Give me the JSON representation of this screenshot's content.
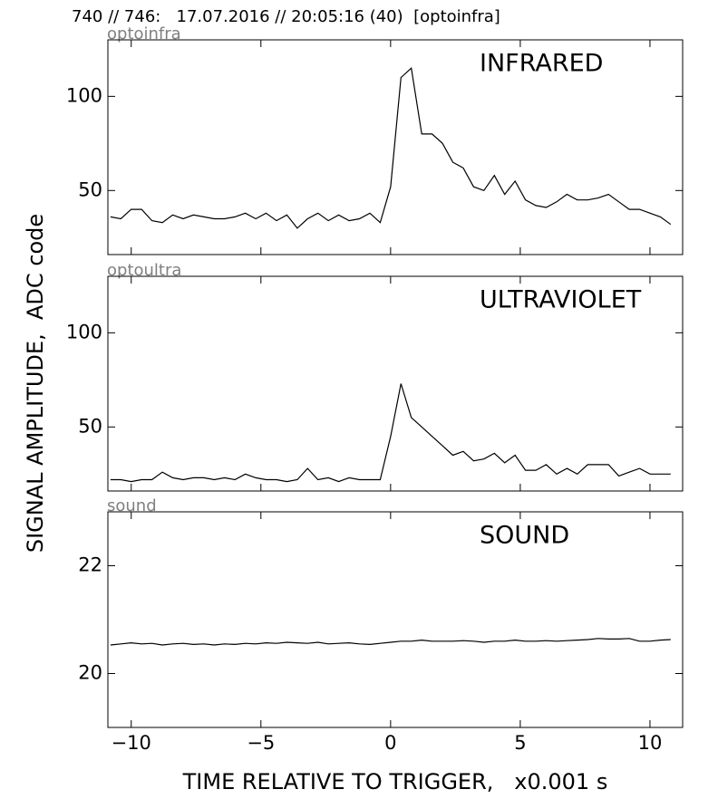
{
  "figure": {
    "title": "740 // 746:   17.07.2016 // 20:05:16 (40)  [optoinfra]",
    "xlabel": "TIME RELATIVE TO TRIGGER,   x0.001 s",
    "ylabel": "SIGNAL AMPLITUDE,  ADC code"
  },
  "chart_data": [
    {
      "type": "line",
      "subtitle": "optoinfra",
      "annotation": "INFRARED",
      "color": "#000000",
      "xlim": [
        -10.9,
        11.26
      ],
      "xticks": [
        -10,
        -5,
        0,
        5,
        10
      ],
      "show_xticklabels": false,
      "ylim": [
        16,
        130
      ],
      "yticks": [
        50,
        100
      ],
      "x": [
        -10.8,
        -10.4,
        -10,
        -9.6,
        -9.2,
        -8.8,
        -8.4,
        -8,
        -7.6,
        -7.2,
        -6.8,
        -6.4,
        -6,
        -5.6,
        -5.2,
        -4.8,
        -4.4,
        -4,
        -3.6,
        -3.2,
        -2.8,
        -2.4,
        -2,
        -1.6,
        -1.2,
        -0.8,
        -0.4,
        0,
        0.4,
        0.8,
        1.2,
        1.6,
        2,
        2.4,
        2.8,
        3.2,
        3.6,
        4,
        4.4,
        4.8,
        5.2,
        5.6,
        6,
        6.4,
        6.8,
        7.2,
        7.6,
        8,
        8.4,
        8.8,
        9.2,
        9.6,
        10,
        10.4,
        10.8
      ],
      "values": [
        36,
        35,
        40,
        40,
        34,
        33,
        37,
        35,
        37,
        36,
        35,
        35,
        36,
        38,
        35,
        38,
        34,
        37,
        30,
        35,
        38,
        34,
        37,
        34,
        35,
        38,
        33,
        52,
        110,
        115,
        80,
        80,
        75,
        65,
        62,
        52,
        50,
        58,
        48,
        55,
        45,
        42,
        41,
        44,
        48,
        45,
        45,
        46,
        48,
        44,
        40,
        40,
        38,
        36,
        32
      ]
    },
    {
      "type": "line",
      "subtitle": "optoultra",
      "annotation": "ULTRAVIOLET",
      "color": "#000000",
      "xlim": [
        -10.9,
        11.26
      ],
      "xticks": [
        -10,
        -5,
        0,
        5,
        10
      ],
      "show_xticklabels": false,
      "ylim": [
        16,
        130
      ],
      "yticks": [
        50,
        100
      ],
      "x": [
        -10.8,
        -10.4,
        -10,
        -9.6,
        -9.2,
        -8.8,
        -8.4,
        -8,
        -7.6,
        -7.2,
        -6.8,
        -6.4,
        -6,
        -5.6,
        -5.2,
        -4.8,
        -4.4,
        -4,
        -3.6,
        -3.2,
        -2.8,
        -2.4,
        -2,
        -1.6,
        -1.2,
        -0.8,
        -0.4,
        0,
        0.4,
        0.8,
        1.2,
        1.6,
        2,
        2.4,
        2.8,
        3.2,
        3.6,
        4,
        4.4,
        4.8,
        5.2,
        5.6,
        6,
        6.4,
        6.8,
        7.2,
        7.6,
        8,
        8.4,
        8.8,
        9.2,
        9.6,
        10,
        10.4,
        10.8
      ],
      "values": [
        22,
        22,
        21,
        22,
        22,
        26,
        23,
        22,
        23,
        23,
        22,
        23,
        22,
        25,
        23,
        22,
        22,
        21,
        22,
        28,
        22,
        23,
        21,
        23,
        22,
        22,
        22,
        45,
        73,
        55,
        50,
        45,
        40,
        35,
        37,
        32,
        33,
        36,
        31,
        35,
        27,
        27,
        30,
        25,
        28,
        25,
        30,
        30,
        30,
        24,
        26,
        28,
        25,
        25,
        25
      ]
    },
    {
      "type": "line",
      "subtitle": "sound",
      "annotation": "SOUND",
      "color": "#000000",
      "xlim": [
        -10.9,
        11.26
      ],
      "xticks": [
        {
          "value": -10,
          "label": "−10"
        },
        {
          "value": -5,
          "label": "−5"
        },
        0,
        5,
        10
      ],
      "show_xticklabels": true,
      "ylim": [
        19,
        23
      ],
      "yticks": [
        20,
        22
      ],
      "x": [
        -10.8,
        -10.4,
        -10,
        -9.6,
        -9.2,
        -8.8,
        -8.4,
        -8,
        -7.6,
        -7.2,
        -6.8,
        -6.4,
        -6,
        -5.6,
        -5.2,
        -4.8,
        -4.4,
        -4,
        -3.6,
        -3.2,
        -2.8,
        -2.4,
        -2,
        -1.6,
        -1.2,
        -0.8,
        -0.4,
        0,
        0.4,
        0.8,
        1.2,
        1.6,
        2,
        2.4,
        2.8,
        3.2,
        3.6,
        4,
        4.4,
        4.8,
        5.2,
        5.6,
        6,
        6.4,
        6.8,
        7.2,
        7.6,
        8,
        8.4,
        8.8,
        9.2,
        9.6,
        10,
        10.4,
        10.8
      ],
      "values": [
        20.53,
        20.55,
        20.57,
        20.55,
        20.56,
        20.53,
        20.55,
        20.56,
        20.54,
        20.55,
        20.53,
        20.55,
        20.54,
        20.56,
        20.55,
        20.57,
        20.56,
        20.58,
        20.57,
        20.56,
        20.58,
        20.55,
        20.56,
        20.57,
        20.55,
        20.54,
        20.56,
        20.58,
        20.6,
        20.6,
        20.62,
        20.6,
        20.6,
        20.6,
        20.61,
        20.6,
        20.58,
        20.6,
        20.6,
        20.62,
        20.6,
        20.6,
        20.61,
        20.6,
        20.61,
        20.62,
        20.63,
        20.65,
        20.64,
        20.64,
        20.65,
        20.6,
        20.6,
        20.62,
        20.63
      ]
    }
  ]
}
